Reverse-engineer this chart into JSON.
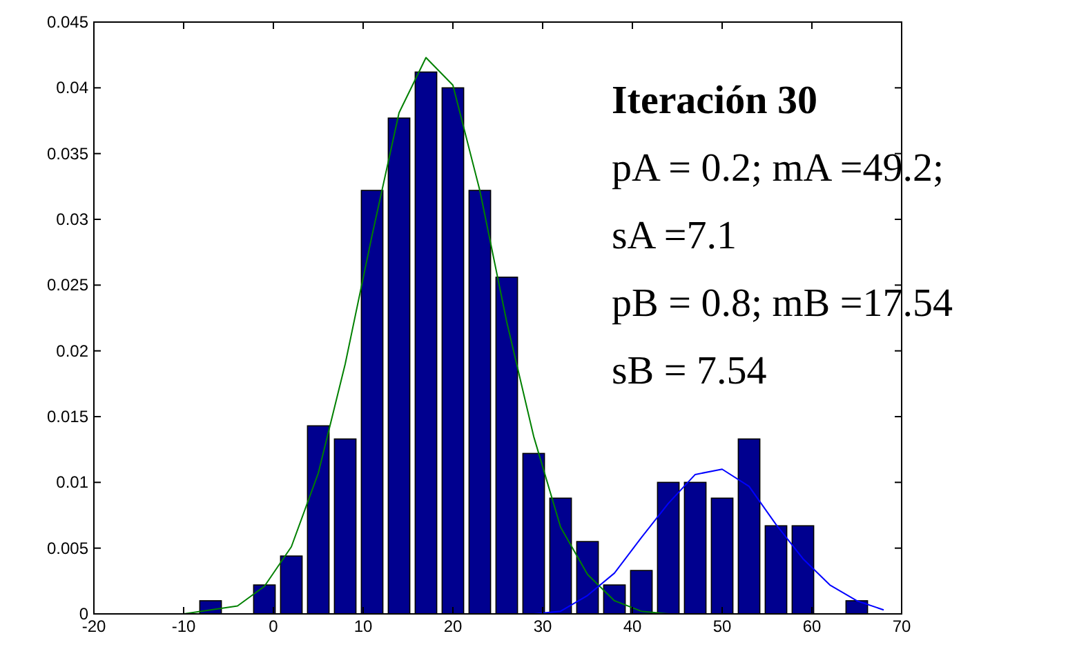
{
  "chart_data": {
    "type": "histogram",
    "bins": [
      -8.5,
      -5.5,
      -2.5,
      0.5,
      3.5,
      6.5,
      9.5,
      12.5,
      15.5,
      18.5,
      21.5,
      24.5,
      27.5,
      30.5,
      33.5,
      36.5,
      39.5,
      42.5,
      45.5,
      48.5,
      51.5,
      54.5,
      57.5,
      60.5,
      63.5,
      66.5
    ],
    "series": [
      {
        "color": "#00008f",
        "values": [
          0.001,
          0,
          0.0022,
          0.0044,
          0.0143,
          0.0133,
          0.0322,
          0.0377,
          0.0412,
          0.04,
          0.0322,
          0.0256,
          0.0122,
          0.0088,
          0.0055,
          0.0022,
          0.0033,
          0.01,
          0.01,
          0.0088,
          0.0133,
          0.0067,
          0.0067,
          0,
          0.001
        ]
      },
      {
        "type": "line",
        "color": "#008000",
        "x": [
          -10,
          -4,
          -1,
          2,
          5,
          8,
          11,
          14,
          17,
          20,
          23,
          26,
          29,
          32,
          35,
          38,
          41,
          44
        ],
        "values": [
          0,
          0.0006,
          0.0021,
          0.0051,
          0.0107,
          0.019,
          0.0288,
          0.0381,
          0.0423,
          0.0402,
          0.0322,
          0.0222,
          0.0135,
          0.0066,
          0.003,
          0.001,
          0.0002,
          0
        ]
      },
      {
        "type": "line",
        "color": "#0000ff",
        "x": [
          29,
          32,
          35,
          38,
          41,
          44,
          47,
          50,
          53,
          56,
          59,
          62,
          65,
          68
        ],
        "values": [
          0,
          0.0002,
          0.0014,
          0.0031,
          0.0058,
          0.0084,
          0.0106,
          0.011,
          0.0097,
          0.0068,
          0.0042,
          0.0022,
          0.001,
          0.0003
        ]
      }
    ],
    "xlim": [
      -20,
      70
    ],
    "xticks": [
      -20,
      -10,
      0,
      10,
      20,
      30,
      40,
      50,
      60,
      70
    ],
    "ylim": [
      0,
      0.045
    ],
    "yticks": [
      0,
      0.005,
      0.01,
      0.015,
      0.02,
      0.025,
      0.03,
      0.035,
      0.04,
      0.045
    ],
    "annotations": [
      "Iteración 30",
      "pA = 0.2; mA =49.2;",
      "sA =7.1",
      "pB = 0.8; mB =17.54",
      "sB = 7.54"
    ]
  }
}
